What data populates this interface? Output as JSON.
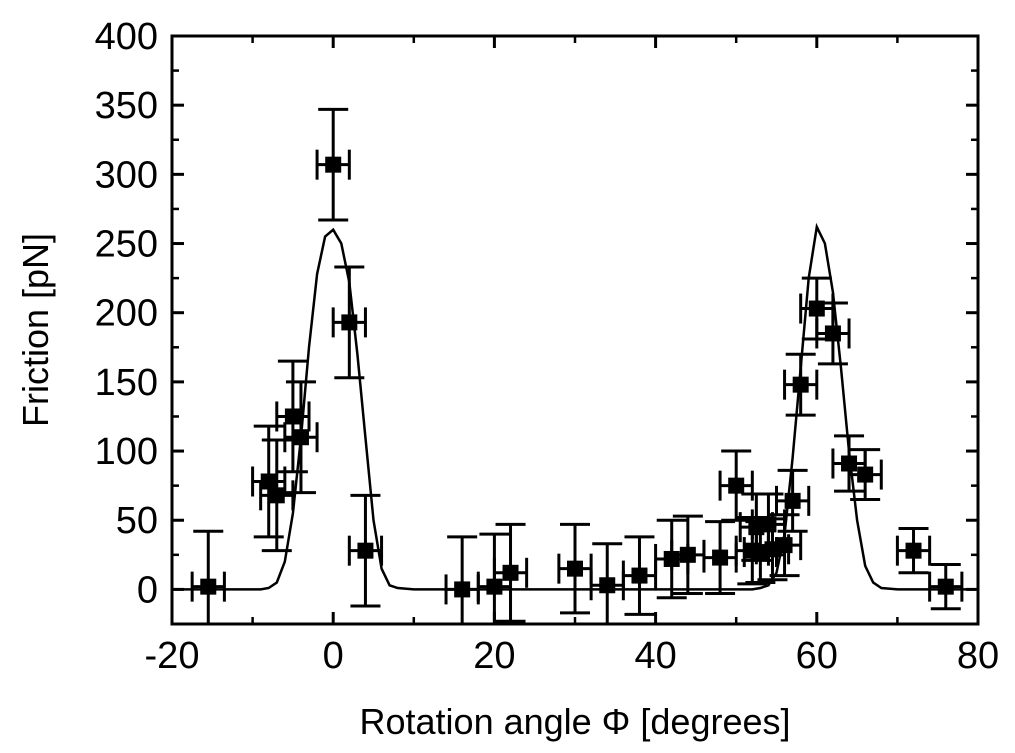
{
  "chart_data": {
    "type": "scatter",
    "title": "",
    "xlabel": "Rotation angle Φ [degrees]",
    "ylabel": "Friction [pN]",
    "xlim": [
      -20,
      80
    ],
    "ylim": [
      -25,
      400
    ],
    "xticks": [
      -20,
      0,
      20,
      40,
      60,
      80
    ],
    "yticks": [
      0,
      50,
      100,
      150,
      200,
      250,
      300,
      350,
      400
    ],
    "xtick_labels": [
      "-20",
      "0",
      "20",
      "40",
      "60",
      "80"
    ],
    "ytick_labels": [
      "0",
      "50",
      "100",
      "150",
      "200",
      "250",
      "300",
      "350",
      "400"
    ],
    "grid": false,
    "legend": "none",
    "colors": {
      "marker": "#000000",
      "line": "#000000",
      "frame": "#000000"
    },
    "series": [
      {
        "kind": "points-with-errorbars",
        "points": [
          {
            "x": -15.5,
            "y": 2,
            "xerr": 2,
            "yerr": 40
          },
          {
            "x": -8,
            "y": 78,
            "xerr": 2,
            "yerr": 40
          },
          {
            "x": -7,
            "y": 68,
            "xerr": 2,
            "yerr": 40
          },
          {
            "x": -5,
            "y": 125,
            "xerr": 2,
            "yerr": 40
          },
          {
            "x": -4,
            "y": 110,
            "xerr": 2,
            "yerr": 40
          },
          {
            "x": 0,
            "y": 307,
            "xerr": 2,
            "yerr": 40
          },
          {
            "x": 2,
            "y": 193,
            "xerr": 2,
            "yerr": 40
          },
          {
            "x": 4,
            "y": 28,
            "xerr": 2,
            "yerr": 40
          },
          {
            "x": 16,
            "y": 0,
            "xerr": 2,
            "yerr": 38
          },
          {
            "x": 20,
            "y": 2,
            "xerr": 2,
            "yerr": 38
          },
          {
            "x": 22,
            "y": 12,
            "xerr": 2,
            "yerr": 35
          },
          {
            "x": 30,
            "y": 15,
            "xerr": 2,
            "yerr": 32
          },
          {
            "x": 34,
            "y": 3,
            "xerr": 2,
            "yerr": 30
          },
          {
            "x": 38,
            "y": 10,
            "xerr": 2,
            "yerr": 28
          },
          {
            "x": 42,
            "y": 22,
            "xerr": 2,
            "yerr": 28
          },
          {
            "x": 44,
            "y": 25,
            "xerr": 2,
            "yerr": 28
          },
          {
            "x": 48,
            "y": 23,
            "xerr": 2,
            "yerr": 26
          },
          {
            "x": 50,
            "y": 75,
            "xerr": 2,
            "yerr": 25
          },
          {
            "x": 52,
            "y": 28,
            "xerr": 2,
            "yerr": 24
          },
          {
            "x": 52.5,
            "y": 45,
            "xerr": 2,
            "yerr": 24
          },
          {
            "x": 53,
            "y": 27,
            "xerr": 2,
            "yerr": 22
          },
          {
            "x": 54,
            "y": 47,
            "xerr": 2,
            "yerr": 22
          },
          {
            "x": 54.5,
            "y": 29,
            "xerr": 2,
            "yerr": 22
          },
          {
            "x": 56,
            "y": 32,
            "xerr": 2,
            "yerr": 22
          },
          {
            "x": 57,
            "y": 64,
            "xerr": 2,
            "yerr": 22
          },
          {
            "x": 58,
            "y": 148,
            "xerr": 2,
            "yerr": 22
          },
          {
            "x": 60,
            "y": 203,
            "xerr": 2,
            "yerr": 22
          },
          {
            "x": 62,
            "y": 185,
            "xerr": 2,
            "yerr": 22
          },
          {
            "x": 64,
            "y": 91,
            "xerr": 2,
            "yerr": 20
          },
          {
            "x": 66,
            "y": 83,
            "xerr": 2,
            "yerr": 18
          },
          {
            "x": 72,
            "y": 28,
            "xerr": 2,
            "yerr": 16
          },
          {
            "x": 76,
            "y": 2,
            "xerr": 2,
            "yerr": 16
          }
        ]
      },
      {
        "kind": "curve",
        "x": [
          -20,
          -16,
          -12,
          -10,
          -9,
          -8,
          -7,
          -6,
          -5,
          -4,
          -3,
          -2,
          -1,
          0,
          1,
          2,
          3,
          4,
          5,
          6,
          7,
          8,
          10,
          12,
          14,
          20,
          30,
          40,
          50,
          52,
          53,
          54,
          55,
          56,
          57,
          58,
          59,
          60,
          61,
          62,
          63,
          64,
          65,
          66,
          67,
          68,
          70,
          72,
          74,
          76,
          80
        ],
        "y": [
          0,
          0,
          0,
          0,
          0,
          1,
          5,
          20,
          55,
          110,
          175,
          228,
          255,
          260,
          250,
          222,
          170,
          110,
          50,
          15,
          3,
          1,
          0,
          0,
          0,
          0,
          0,
          0,
          0,
          0,
          1,
          3,
          12,
          40,
          95,
          160,
          225,
          262,
          250,
          215,
          160,
          100,
          50,
          17,
          5,
          1,
          0,
          0,
          0,
          0,
          0
        ]
      }
    ]
  }
}
